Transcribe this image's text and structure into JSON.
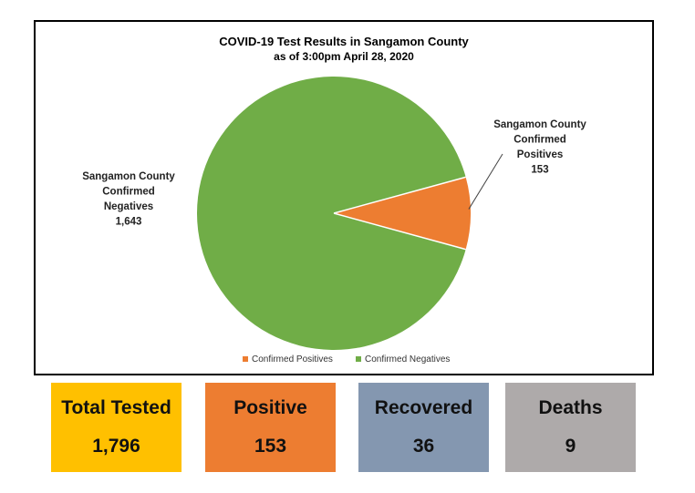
{
  "chart_data": {
    "type": "pie",
    "title": "COVID-19 Test Results in Sangamon County",
    "subtitle": "as of 3:00pm April 28, 2020",
    "slices": [
      {
        "name": "Confirmed Positives",
        "label_lines": [
          "Sangamon County",
          "Confirmed",
          "Positives",
          "153"
        ],
        "value": 153,
        "color": "#ED7D31"
      },
      {
        "name": "Confirmed Negatives",
        "label_lines": [
          "Sangamon County",
          "Confirmed",
          "Negatives",
          "1,643"
        ],
        "value": 1643,
        "color": "#70AD47"
      }
    ],
    "legend": {
      "placement": "bottom",
      "entries": [
        "Confirmed Positives",
        "Confirmed Negatives"
      ]
    }
  },
  "tiles": [
    {
      "label": "Total Tested",
      "value": "1,796",
      "color": "#FFC000"
    },
    {
      "label": "Positive",
      "value": "153",
      "color": "#ED7D31"
    },
    {
      "label": "Recovered",
      "value": "36",
      "color": "#8497B0"
    },
    {
      "label": "Deaths",
      "value": "9",
      "color": "#AEAAAA"
    }
  ]
}
